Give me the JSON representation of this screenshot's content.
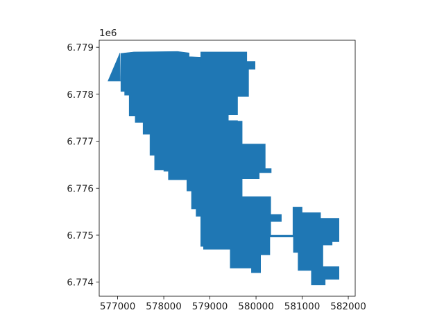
{
  "chart_data": {
    "type": "map",
    "title": "",
    "xlabel": "",
    "ylabel": "",
    "y_offset_label": "1e6",
    "xlim": [
      576600,
      582150
    ],
    "ylim": [
      6773700,
      6779150
    ],
    "x_ticks": [
      577000,
      578000,
      579000,
      580000,
      581000,
      582000
    ],
    "x_tick_labels": [
      "577000",
      "578000",
      "579000",
      "580000",
      "581000",
      "582000"
    ],
    "y_ticks": [
      6774000,
      6775000,
      6776000,
      6777000,
      6778000,
      6779000
    ],
    "y_tick_labels": [
      "6.774",
      "6.775",
      "6.776",
      "6.777",
      "6.778",
      "6.779"
    ],
    "fill_color": "#1f77b4",
    "grid": false,
    "polygons": [
      [
        [
          576790,
          6778280
        ],
        [
          577050,
          6778880
        ],
        [
          577050,
          6778280
        ],
        [
          577060,
          6778280
        ],
        [
          577070,
          6778870
        ],
        [
          577350,
          6778900
        ],
        [
          578300,
          6778910
        ],
        [
          578550,
          6778880
        ],
        [
          578550,
          6778800
        ],
        [
          578800,
          6778790
        ],
        [
          578800,
          6778660
        ],
        [
          578800,
          6778900
        ],
        [
          579800,
          6778900
        ],
        [
          579800,
          6778700
        ],
        [
          579980,
          6778700
        ],
        [
          579980,
          6778530
        ],
        [
          579840,
          6778530
        ],
        [
          579840,
          6777950
        ],
        [
          579600,
          6777950
        ],
        [
          579600,
          6777560
        ],
        [
          579400,
          6777560
        ],
        [
          579400,
          6777440
        ],
        [
          579600,
          6777440
        ],
        [
          579600,
          6777430
        ],
        [
          579700,
          6777430
        ],
        [
          579700,
          6776940
        ],
        [
          580200,
          6776940
        ],
        [
          580200,
          6776420
        ],
        [
          580330,
          6776420
        ],
        [
          580330,
          6776330
        ],
        [
          580070,
          6776330
        ],
        [
          580070,
          6776200
        ],
        [
          579700,
          6776200
        ],
        [
          579700,
          6775820
        ],
        [
          580320,
          6775820
        ],
        [
          580320,
          6775440
        ],
        [
          580550,
          6775440
        ],
        [
          580550,
          6775290
        ],
        [
          580320,
          6775290
        ],
        [
          580320,
          6775000
        ],
        [
          580800,
          6775000
        ],
        [
          580800,
          6775600
        ],
        [
          581000,
          6775600
        ],
        [
          581000,
          6775480
        ],
        [
          581400,
          6775480
        ],
        [
          581400,
          6775360
        ],
        [
          581800,
          6775360
        ],
        [
          581800,
          6774860
        ],
        [
          581650,
          6774860
        ],
        [
          581650,
          6774790
        ],
        [
          581450,
          6774790
        ],
        [
          581450,
          6774330
        ],
        [
          581800,
          6774330
        ],
        [
          581800,
          6774060
        ],
        [
          581500,
          6774060
        ],
        [
          581500,
          6773940
        ],
        [
          581200,
          6773940
        ],
        [
          581200,
          6774250
        ],
        [
          580910,
          6774250
        ],
        [
          580910,
          6774630
        ],
        [
          580810,
          6774630
        ],
        [
          580810,
          6774960
        ],
        [
          580300,
          6774960
        ],
        [
          580300,
          6774580
        ],
        [
          580100,
          6774580
        ],
        [
          580100,
          6774200
        ],
        [
          579900,
          6774200
        ],
        [
          579900,
          6774300
        ],
        [
          579440,
          6774300
        ],
        [
          579440,
          6774700
        ],
        [
          578860,
          6774700
        ],
        [
          578860,
          6774760
        ],
        [
          578800,
          6774760
        ],
        [
          578800,
          6775400
        ],
        [
          578700,
          6775400
        ],
        [
          578700,
          6775560
        ],
        [
          578600,
          6775560
        ],
        [
          578600,
          6775940
        ],
        [
          578500,
          6775940
        ],
        [
          578500,
          6776180
        ],
        [
          578100,
          6776180
        ],
        [
          578100,
          6776360
        ],
        [
          578000,
          6776360
        ],
        [
          578000,
          6776390
        ],
        [
          577800,
          6776390
        ],
        [
          577800,
          6776700
        ],
        [
          577700,
          6776700
        ],
        [
          577700,
          6777150
        ],
        [
          577550,
          6777150
        ],
        [
          577550,
          6777400
        ],
        [
          577380,
          6777400
        ],
        [
          577380,
          6777540
        ],
        [
          577250,
          6777540
        ],
        [
          577250,
          6777980
        ],
        [
          577150,
          6777980
        ],
        [
          577150,
          6778060
        ],
        [
          577070,
          6778060
        ],
        [
          577070,
          6778280
        ]
      ]
    ]
  }
}
